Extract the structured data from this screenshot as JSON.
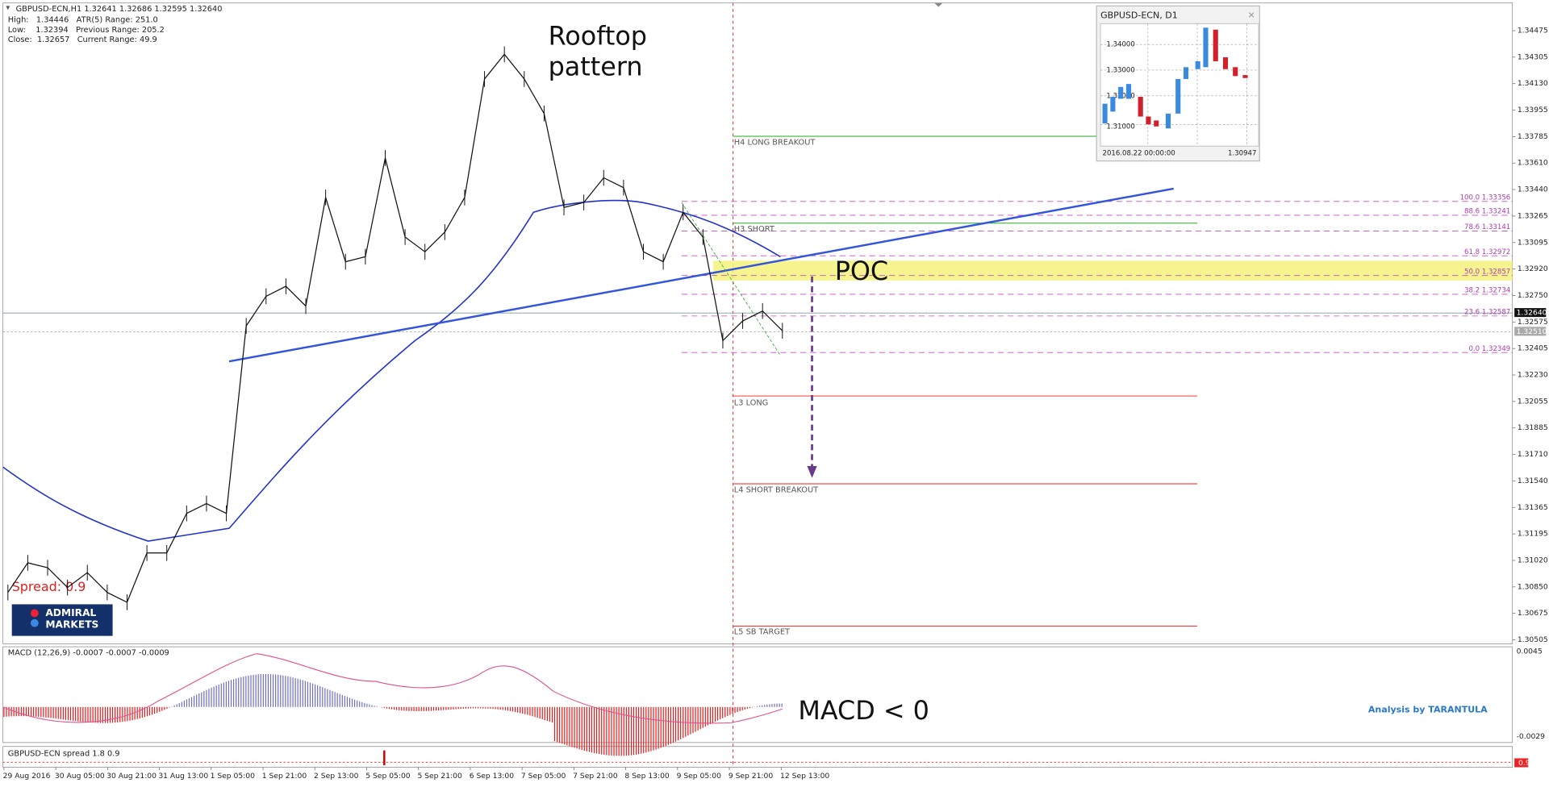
{
  "header": {
    "symbol": "GBPUSD-ECN,H1  1.32641 1.32686 1.32595 1.32640",
    "lines": [
      "High:   1.34446   ATR(5) Range: 251.0",
      "Low:    1.32394   Previous Range: 205.2",
      "Close:  1.32657   Current Range: 49.9"
    ]
  },
  "annotations": {
    "rooftop": [
      "Rooftop",
      "pattern"
    ],
    "poc": "POC",
    "macd": "MACD < 0"
  },
  "levels": [
    "H4 LONG BREAKOUT",
    "H3 SHORT",
    "L3 LONG",
    "L4 SHORT BREAKOUT",
    "L5 SB TARGET"
  ],
  "fib": [
    "100.0  1.33356",
    "88.6  1.33241",
    "78.6  1.33141",
    "61.8  1.32972",
    "50.0  1.32857",
    "38.2  1.32734",
    "23.6  1.32587",
    "0.0  1.32349"
  ],
  "price_axis": {
    "ticks": [
      "1.34475",
      "1.34305",
      "1.34130",
      "1.33955",
      "1.33785",
      "1.33610",
      "1.33440",
      "1.33265",
      "1.33095",
      "1.32920",
      "1.32750",
      "1.32575",
      "1.32405",
      "1.32230",
      "1.32055",
      "1.31885",
      "1.31710",
      "1.31540",
      "1.31365",
      "1.31195",
      "1.31020",
      "1.30850",
      "1.30675",
      "1.30505"
    ],
    "current": "1.32640",
    "bid": "1.32510"
  },
  "time_axis": [
    "29 Aug 2016",
    "30 Aug 05:00",
    "30 Aug 21:00",
    "31 Aug 13:00",
    "1 Sep 05:00",
    "1 Sep 21:00",
    "2 Sep 13:00",
    "5 Sep 05:00",
    "5 Sep 21:00",
    "6 Sep 13:00",
    "7 Sep 05:00",
    "7 Sep 21:00",
    "8 Sep 13:00",
    "9 Sep 05:00",
    "9 Sep 21:00",
    "12 Sep 13:00"
  ],
  "price_path": [
    1.30814,
    1.31007,
    1.30975,
    1.30846,
    1.30943,
    1.30814,
    1.3075,
    1.31071,
    1.31071,
    1.31329,
    1.31393,
    1.31329,
    1.32551,
    1.32744,
    1.32809,
    1.3268,
    1.33388,
    1.32969,
    1.33002,
    1.33645,
    1.3313,
    1.33034,
    1.33162,
    1.33388,
    1.3416,
    1.34321,
    1.3416,
    1.33935,
    1.33323,
    1.33355,
    1.33516,
    1.33452,
    1.33034,
    1.32969,
    1.33291,
    1.3313,
    1.32455,
    1.32583,
    1.32648,
    1.32519
  ],
  "macd": {
    "label": "MACD (12,26,9) -0.0007 -0.0007 -0.0009",
    "ticks": [
      "0.0045",
      "-0.0029"
    ]
  },
  "spread": {
    "label": "GBPUSD-ECN spread 1.8 0.9",
    "value": "0.9",
    "overlay": "Spread: 0.9"
  },
  "logo": [
    "ADMIRAL",
    "MARKETS"
  ],
  "credit": "Analysis by TARANTULA",
  "mini": {
    "title": "GBPUSD-ECN, D1",
    "ticks": [
      "1.34000",
      "1.33000",
      "1.32000",
      "1.31000"
    ],
    "date": "2016.08.22 00:00:00",
    "price": "1.30947"
  }
}
